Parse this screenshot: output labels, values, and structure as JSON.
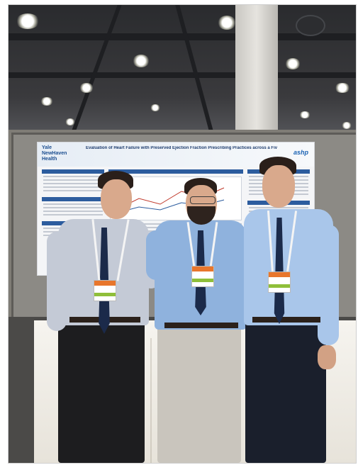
{
  "poster": {
    "logo_lines": [
      "Yale",
      "NewHaven",
      "Health"
    ],
    "title": "Evaluation of Heart Failure with Preserved Ejection Fraction Prescribing Practices across a Five-Hospital Health System",
    "brand": "ashp"
  },
  "colors": {
    "shirt_left": "#c4cad6",
    "shirt_middle": "#8fb2dd",
    "shirt_right": "#a9c6ea",
    "tie": "#1b2a4a",
    "poster_header_bar": "#2c5c9e"
  }
}
